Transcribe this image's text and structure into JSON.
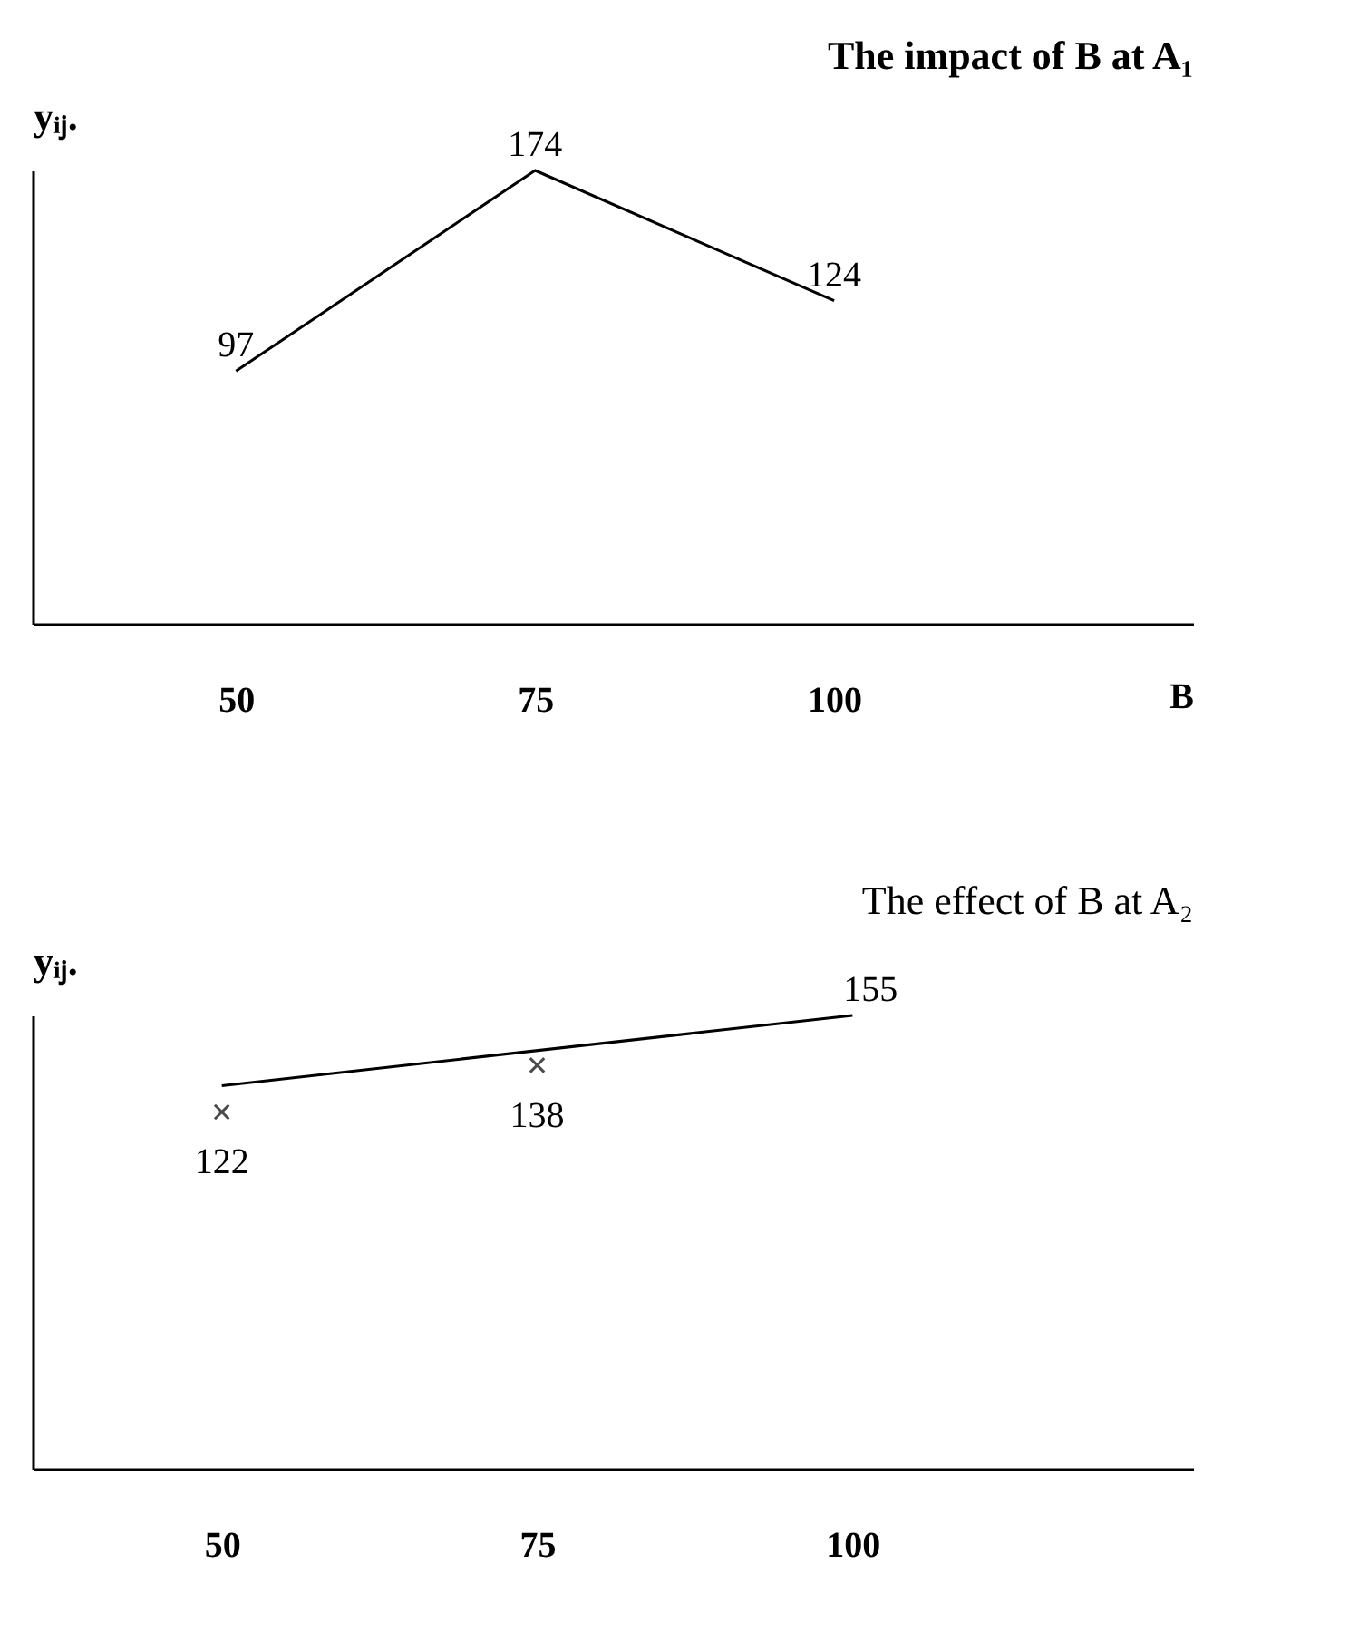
{
  "chart_data": [
    {
      "type": "line",
      "title": "The impact of B at A₁",
      "xlabel": "B",
      "ylabel": "yᵢⱼ.",
      "xlim": [
        33,
        130
      ],
      "xticks": [
        50,
        75,
        100
      ],
      "tick_labels": "x",
      "data_labels": true,
      "marker": "none",
      "series": [
        {
          "x": [
            50,
            75,
            100
          ],
          "values": [
            97,
            174,
            124
          ],
          "color": "#000000"
        }
      ]
    },
    {
      "type": "line",
      "title": "The effect of B at A₂",
      "ylabel": "yᵢⱼ.",
      "xlim": [
        35,
        127
      ],
      "xticks": [
        50,
        75,
        100
      ],
      "tick_labels": "x",
      "series": [
        {
          "type": "scatter",
          "marker": "cross",
          "x": [
            50,
            75
          ],
          "values": [
            122,
            138
          ],
          "value_labels": [
            "122",
            "138"
          ],
          "color": "#000000"
        },
        {
          "marker": "none",
          "x": [
            50,
            100
          ],
          "values": [
            131,
            155
          ],
          "value_labels": [
            null,
            "155"
          ],
          "color": "#000000"
        }
      ]
    }
  ]
}
